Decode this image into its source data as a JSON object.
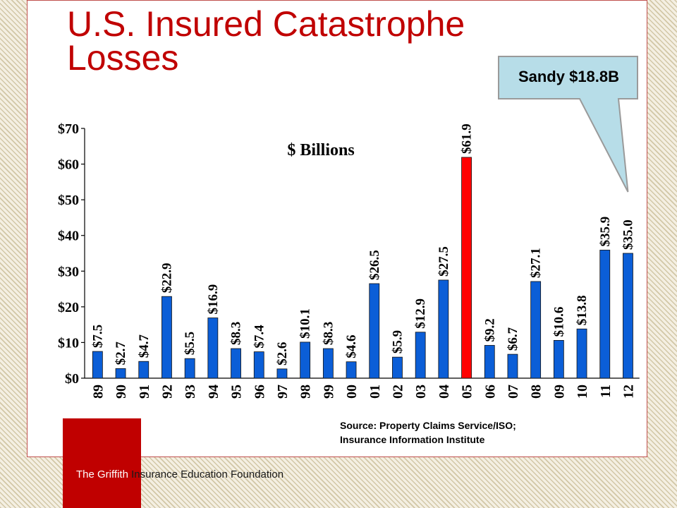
{
  "slide": {
    "title": "U.S. Insured Catastrophe Losses",
    "accent_color": "#c00000"
  },
  "callout": {
    "text": "Sandy $18.8B",
    "fill": "#b7dde8",
    "points_to_category": "12"
  },
  "source": {
    "line1": "Source:  Property Claims Service/ISO;",
    "line2": "Insurance Information Institute"
  },
  "footer": {
    "org_white": "The Griffith",
    "org_rest": " Insurance Education Foundation"
  },
  "chart_data": {
    "type": "bar",
    "title": "$ Billions",
    "xlabel": "",
    "ylabel": "",
    "categories": [
      "89",
      "90",
      "91",
      "92",
      "93",
      "94",
      "95",
      "96",
      "97",
      "98",
      "99",
      "00",
      "01",
      "02",
      "03",
      "04",
      "05",
      "06",
      "07",
      "08",
      "09",
      "10",
      "11",
      "12"
    ],
    "values": [
      7.5,
      2.7,
      4.7,
      22.9,
      5.5,
      16.9,
      8.3,
      7.4,
      2.6,
      10.1,
      8.3,
      4.6,
      26.5,
      5.9,
      12.9,
      27.5,
      61.9,
      9.2,
      6.7,
      27.1,
      10.6,
      13.8,
      35.9,
      35.0
    ],
    "data_labels": [
      "$7.5",
      "$2.7",
      "$4.7",
      "$22.9",
      "$5.5",
      "$16.9",
      "$8.3",
      "$7.4",
      "$2.6",
      "$10.1",
      "$8.3",
      "$4.6",
      "$26.5",
      "$5.9",
      "$12.9",
      "$27.5",
      "$61.9",
      "$9.2",
      "$6.7",
      "$27.1",
      "$10.6",
      "$13.8",
      "$35.9",
      "$35.0"
    ],
    "ylim": [
      0,
      70
    ],
    "yticks": [
      0,
      10,
      20,
      30,
      40,
      50,
      60,
      70
    ],
    "ytick_labels": [
      "$0",
      "$10",
      "$20",
      "$30",
      "$40",
      "$50",
      "$60",
      "$70"
    ],
    "bar_color": "#0b5ed7",
    "highlight_category": "05",
    "highlight_color": "#ff0000",
    "grid": false,
    "legend": "none"
  }
}
